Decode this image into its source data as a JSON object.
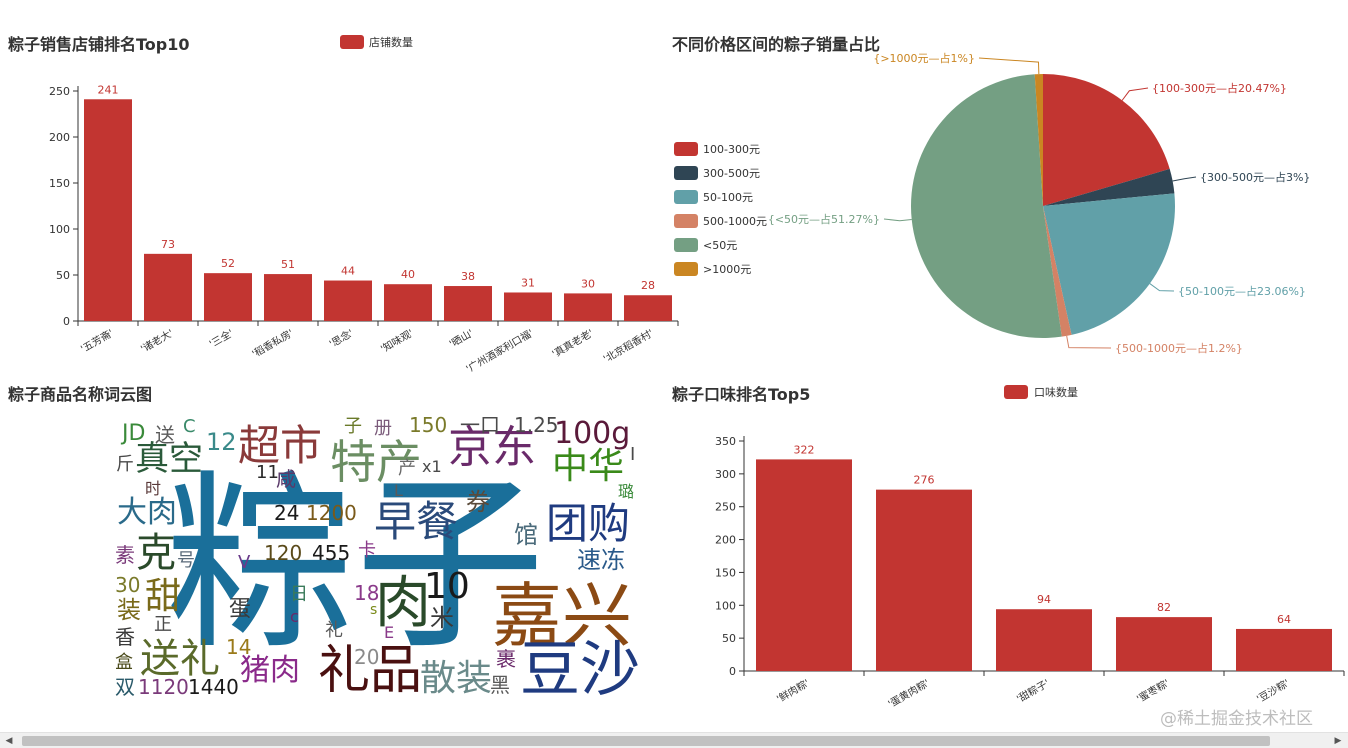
{
  "chart_data": [
    {
      "id": "shops",
      "type": "bar",
      "title": "粽子销售店铺排名Top10",
      "legend": "店铺数量",
      "categories": [
        "'五芳斋'",
        "'诸老大'",
        "'三全'",
        "'稻香私房'",
        "'思念'",
        "'知味观'",
        "'晒山'",
        "'广州酒家利口福'",
        "'真真老老'",
        "'北京稻香村'"
      ],
      "values": [
        241,
        73,
        52,
        51,
        44,
        40,
        38,
        31,
        30,
        28
      ],
      "ylim": [
        0,
        250
      ],
      "yticks": [
        0,
        50,
        100,
        150,
        200,
        250
      ],
      "color": "#c23531"
    },
    {
      "id": "price",
      "type": "pie",
      "title": "不同价格区间的粽子销量占比",
      "slices": [
        {
          "name": "100-300元",
          "value": 20.47,
          "label": "{100-300元—占20.47%}",
          "color": "#c23531"
        },
        {
          "name": "300-500元",
          "value": 3,
          "label": "{300-500元—占3%}",
          "color": "#2f4554"
        },
        {
          "name": "50-100元",
          "value": 23.06,
          "label": "{50-100元—占23.06%}",
          "color": "#61a0a8"
        },
        {
          "name": "500-1000元",
          "value": 1.2,
          "label": "{500-1000元—占1.2%}",
          "color": "#d48265"
        },
        {
          "name": "<50元",
          "value": 51.27,
          "label": "{<50元—占51.27%}",
          "color": "#749f83"
        },
        {
          "name": ">1000元",
          "value": 1,
          "label": "{>1000元—占1%}",
          "color": "#ca8622"
        }
      ]
    },
    {
      "id": "flavor",
      "type": "bar",
      "title": "粽子口味排名Top5",
      "legend": "口味数量",
      "categories": [
        "'鲜肉粽'",
        "'蛋黄肉粽'",
        "'甜粽子'",
        "'蜜枣粽'",
        "'豆沙粽'"
      ],
      "values": [
        322,
        276,
        94,
        82,
        64
      ],
      "ylim": [
        0,
        350
      ],
      "yticks": [
        0,
        50,
        100,
        150,
        200,
        250,
        300,
        350
      ],
      "color": "#c23531"
    }
  ],
  "wordcloud": {
    "title": "粽子商品名称词云图",
    "words": [
      {
        "text": "粽子",
        "color": "#1a6f9a"
      },
      {
        "text": "嘉兴",
        "color": "#8b4a14"
      },
      {
        "text": "豆沙",
        "color": "#1f3b80"
      },
      {
        "text": "礼品",
        "color": "#4a1010"
      },
      {
        "text": "特产",
        "color": "#6b8e63"
      },
      {
        "text": "超市",
        "color": "#8a3a3a"
      },
      {
        "text": "京东",
        "color": "#6a2a6a"
      },
      {
        "text": "早餐",
        "color": "#2a4a7a"
      },
      {
        "text": "团购",
        "color": "#1f3b80"
      },
      {
        "text": "肉",
        "color": "#2a4a2a"
      },
      {
        "text": "送礼",
        "color": "#5a6a2a"
      },
      {
        "text": "散装",
        "color": "#6a8a8a"
      },
      {
        "text": "猪肉",
        "color": "#8a2a8a"
      },
      {
        "text": "中华",
        "color": "#3a8a1a"
      },
      {
        "text": "100g",
        "color": "#5a1a3a"
      },
      {
        "text": "真空",
        "color": "#2a5a3a"
      },
      {
        "text": "大肉",
        "color": "#2a6a8a"
      },
      {
        "text": "克",
        "color": "#2a4a2a"
      },
      {
        "text": "甜",
        "color": "#7a6a1a"
      },
      {
        "text": "10",
        "color": "#1a1a1a"
      },
      {
        "text": "米",
        "color": "#3a3a3a"
      },
      {
        "text": "速冻",
        "color": "#2a5a8a"
      },
      {
        "text": "馆",
        "color": "#4a6a7a"
      },
      {
        "text": "券",
        "color": "#5a4a3a"
      },
      {
        "text": "JD",
        "color": "#3a8a3a"
      },
      {
        "text": "送",
        "color": "#5a5a5a"
      },
      {
        "text": "C",
        "color": "#3a8a6a"
      },
      {
        "text": "12",
        "color": "#3a8a8a"
      },
      {
        "text": "斤",
        "color": "#4a4a4a"
      },
      {
        "text": "子",
        "color": "#6a7a2a"
      },
      {
        "text": "册",
        "color": "#7a5a7a"
      },
      {
        "text": "150",
        "color": "#7a7a2a"
      },
      {
        "text": "一口",
        "color": "#4a4a4a"
      },
      {
        "text": "1.25",
        "color": "#4a4a4a"
      },
      {
        "text": "I",
        "color": "#4a4a4a"
      },
      {
        "text": "璐",
        "color": "#3a8a3a"
      },
      {
        "text": "11",
        "color": "#2a2a2a"
      },
      {
        "text": "咸",
        "color": "#5a3a6a"
      },
      {
        "text": "产",
        "color": "#6a6a6a"
      },
      {
        "text": "x1",
        "color": "#4a4a4a"
      },
      {
        "text": "L",
        "color": "#5a5a5a"
      },
      {
        "text": "时",
        "color": "#5a3a3a"
      },
      {
        "text": "24",
        "color": "#1a1a1a"
      },
      {
        "text": "1200",
        "color": "#7a5a1a"
      },
      {
        "text": "素",
        "color": "#7a3a7a"
      },
      {
        "text": "号",
        "color": "#5a6a7a"
      },
      {
        "text": "120",
        "color": "#5a4a1a"
      },
      {
        "text": "455",
        "color": "#1a1a1a"
      },
      {
        "text": "卡",
        "color": "#8a3a8a"
      },
      {
        "text": "V",
        "color": "#6a3a8a"
      },
      {
        "text": "30",
        "color": "#7a7a2a"
      },
      {
        "text": "装",
        "color": "#7a6a1a"
      },
      {
        "text": "蛋",
        "color": "#3a3a3a"
      },
      {
        "text": "日",
        "color": "#3a7a5a"
      },
      {
        "text": "18",
        "color": "#8a3a8a"
      },
      {
        "text": "s",
        "color": "#7a8a1a"
      },
      {
        "text": "正",
        "color": "#4a4a4a"
      },
      {
        "text": "c",
        "color": "#6a2a6a"
      },
      {
        "text": "礼",
        "color": "#5a5a5a"
      },
      {
        "text": "E",
        "color": "#8a3a8a"
      },
      {
        "text": "香",
        "color": "#3a3a3a"
      },
      {
        "text": "14",
        "color": "#9a7a1a"
      },
      {
        "text": "20",
        "color": "#8a8a8a"
      },
      {
        "text": "裹",
        "color": "#6a2a6a"
      },
      {
        "text": "盒",
        "color": "#4a4a1a"
      },
      {
        "text": "双",
        "color": "#2a5a6a"
      },
      {
        "text": "1120",
        "color": "#7a3a7a"
      },
      {
        "text": "1440",
        "color": "#1a1a1a"
      },
      {
        "text": "黑",
        "color": "#5a5a5a"
      }
    ]
  },
  "watermark": "@稀土掘金技术社区"
}
